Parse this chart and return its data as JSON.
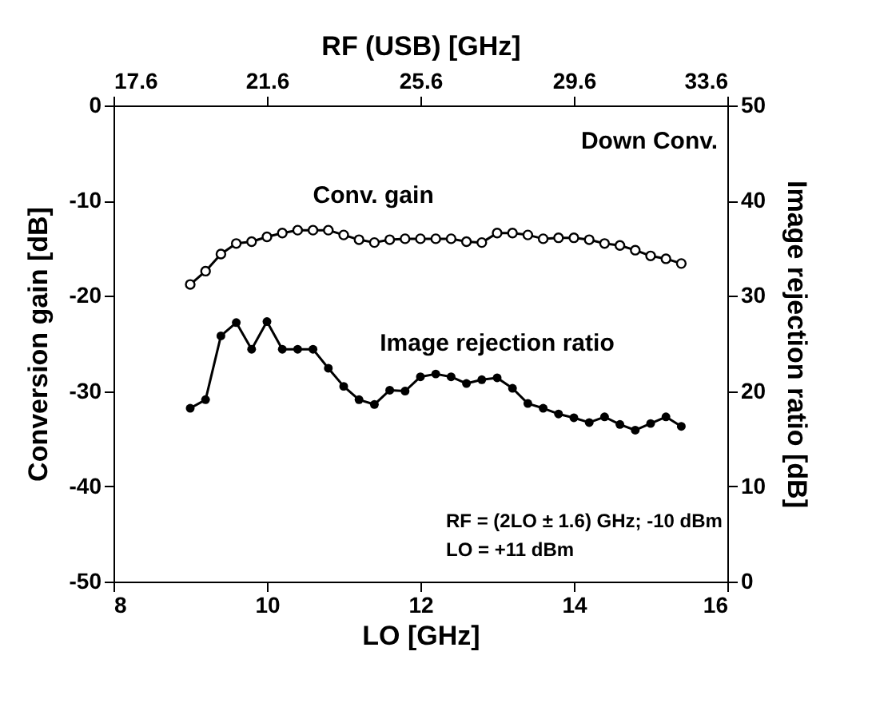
{
  "chart_data": {
    "type": "line",
    "xlabel": "LO [GHz]",
    "ylabel": "Conversion gain [dB]",
    "y2label": "Image rejection ratio [dB]",
    "x2label": "RF (USB) [GHz]",
    "xlim": [
      8,
      16
    ],
    "xticks": [
      8,
      10,
      12,
      14,
      16
    ],
    "ylim": [
      -50,
      0
    ],
    "yticks": [
      -50,
      -40,
      -30,
      -20,
      -10,
      0
    ],
    "y2lim": [
      0,
      50
    ],
    "y2ticks": [
      0,
      10,
      20,
      30,
      40,
      50
    ],
    "x2lim": [
      17.6,
      33.6
    ],
    "x2ticks": [
      17.6,
      21.6,
      25.6,
      29.6,
      33.6
    ],
    "marker": "circle",
    "line_style": "solid",
    "grid": false,
    "x": [
      9.0,
      9.2,
      9.4,
      9.6,
      9.8,
      10.0,
      10.2,
      10.4,
      10.6,
      10.8,
      11.0,
      11.2,
      11.4,
      11.6,
      11.8,
      12.0,
      12.2,
      12.4,
      12.6,
      12.8,
      13.0,
      13.2,
      13.4,
      13.6,
      13.8,
      14.0,
      14.2,
      14.4,
      14.6,
      14.8,
      15.0,
      15.2,
      15.4
    ],
    "series": [
      {
        "name": "Conv. gain",
        "color": "#000000",
        "values": [
          -18.8,
          -17.4,
          -15.6,
          -14.5,
          -14.3,
          -13.8,
          -13.4,
          -13.1,
          -13.1,
          -13.1,
          -13.6,
          -14.1,
          -14.4,
          -14.1,
          -14.0,
          -14.0,
          -14.0,
          -14.0,
          -14.3,
          -14.4,
          -13.4,
          -13.4,
          -13.6,
          -14.0,
          -13.9,
          -13.9,
          -14.1,
          -14.5,
          -14.7,
          -15.2,
          -15.8,
          -16.1,
          -16.6
        ]
      },
      {
        "name": "Image rejection ratio",
        "color": "#000000",
        "axis": "y2",
        "values": [
          18.2,
          19.1,
          25.8,
          27.2,
          24.4,
          27.3,
          24.4,
          24.4,
          24.4,
          22.4,
          20.5,
          19.1,
          18.6,
          20.1,
          20.0,
          21.5,
          21.8,
          21.5,
          20.8,
          21.2,
          21.4,
          20.3,
          18.7,
          18.2,
          17.6,
          17.2,
          16.7,
          17.3,
          16.5,
          15.9,
          16.6,
          17.3,
          16.3
        ]
      }
    ],
    "annotations": [
      "Down Conv.",
      "RF = (2LO ± 1.6) GHz; -10 dBm",
      "LO = +11 dBm"
    ]
  }
}
